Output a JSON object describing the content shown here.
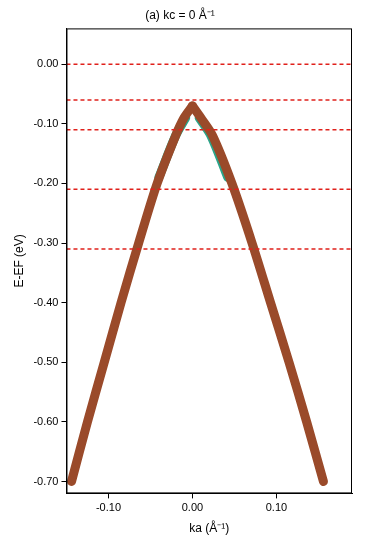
{
  "chart_data": {
    "type": "scatter",
    "title": "(a) kc = 0 Å⁻¹",
    "x_label": "ka (Å⁻¹)",
    "y_label": "E-EF (eV)",
    "xlim": [
      -0.15,
      0.19
    ],
    "ylim": [
      -0.72,
      0.06
    ],
    "xticks": [
      {
        "value": -0.1,
        "label": "-0.10"
      },
      {
        "value": 0,
        "label": "0.00"
      },
      {
        "value": 0.1,
        "label": "0.10"
      }
    ],
    "yticks": [
      {
        "value": 0,
        "label": "0.00"
      },
      {
        "value": -0.1,
        "label": "-0.10"
      },
      {
        "value": -0.2,
        "label": "-0.20"
      },
      {
        "value": -0.3,
        "label": "-0.30"
      },
      {
        "value": -0.4,
        "label": "-0.40"
      },
      {
        "value": -0.5,
        "label": "-0.50"
      },
      {
        "value": -0.6,
        "label": "-0.60"
      },
      {
        "value": -0.7,
        "label": "-0.70"
      }
    ],
    "grid": false,
    "series": [
      {
        "color": "#9a4a2a",
        "line_style": "solid",
        "x": [
          -0.144,
          -0.125,
          -0.105,
          -0.085,
          -0.064,
          -0.042,
          -0.02,
          -0.01,
          0
        ],
        "values": [
          -0.7,
          -0.6,
          -0.5,
          -0.4,
          -0.3,
          -0.2,
          -0.12,
          -0.09,
          -0.07
        ]
      },
      {
        "color": "#9a4a2a",
        "line_style": "solid",
        "x": [
          0,
          0.01,
          0.024,
          0.047,
          0.071,
          0.093,
          0.115,
          0.136,
          0.156
        ],
        "values": [
          -0.07,
          -0.09,
          -0.12,
          -0.2,
          -0.3,
          -0.4,
          -0.5,
          -0.6,
          -0.7
        ]
      },
      {
        "color": "#2aa58a",
        "line_style": "solid",
        "x": [
          -0.04,
          -0.02,
          -0.008
        ],
        "values": [
          -0.19,
          -0.12,
          -0.09
        ]
      },
      {
        "color": "#2aa58a",
        "line_style": "solid",
        "x": [
          0.008,
          0.022,
          0.042
        ],
        "values": [
          -0.09,
          -0.12,
          -0.19
        ]
      }
    ],
    "hlines": {
      "values": [
        0,
        -0.06,
        -0.11,
        -0.21,
        -0.31
      ],
      "color": "#e0201b",
      "line_style": "dashed"
    }
  }
}
